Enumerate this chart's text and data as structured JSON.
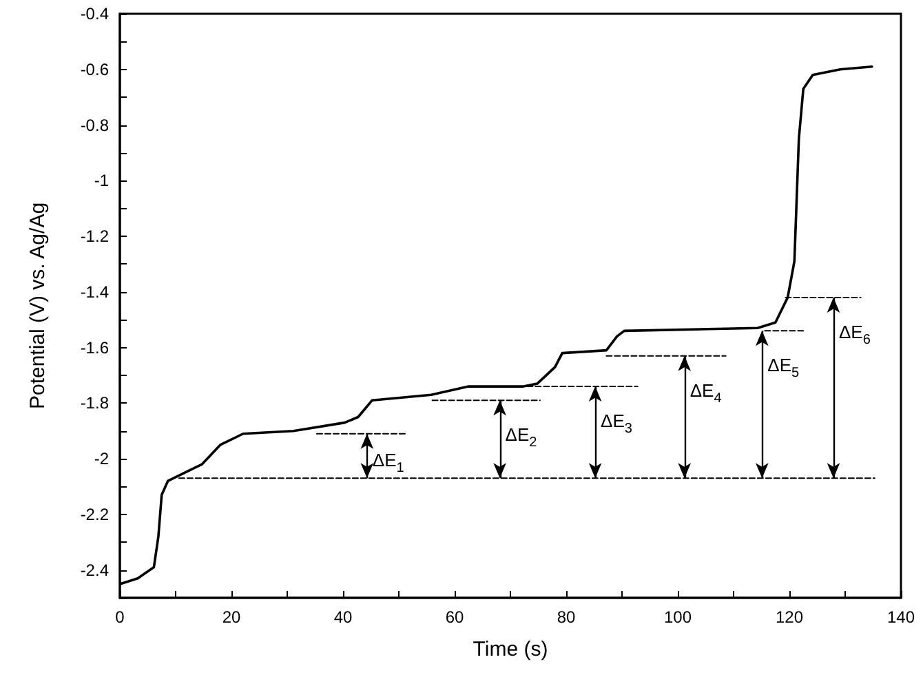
{
  "chart_data": {
    "type": "line",
    "xlabel": "Time (s)",
    "ylabel": "Potential (V) vs. Ag/Ag",
    "marker": "none",
    "xlim": [
      0,
      140
    ],
    "ylim": [
      -2.5,
      -0.4
    ],
    "xticks": [
      0,
      {
        "value": 10,
        "label": null
      },
      20,
      {
        "value": 30,
        "label": null
      },
      40,
      {
        "value": 50,
        "label": null
      },
      60,
      {
        "value": 70,
        "label": null
      },
      80,
      {
        "value": 90,
        "label": null
      },
      100,
      {
        "value": 110,
        "label": null
      },
      120,
      {
        "value": 130,
        "label": null
      },
      140
    ],
    "yticks": [
      {
        "value": -2.5,
        "label": null
      },
      -2.4,
      {
        "value": -2.3,
        "label": null
      },
      -2.2,
      {
        "value": -2.1,
        "label": null
      },
      -2.0,
      {
        "value": -1.9,
        "label": null
      },
      -1.8,
      {
        "value": -1.7,
        "label": null
      },
      -1.6,
      {
        "value": -1.5,
        "label": null
      },
      -1.4,
      {
        "value": -1.3,
        "label": null
      },
      -1.2,
      {
        "value": -1.1,
        "label": null
      },
      -1.0,
      {
        "value": -0.9,
        "label": null
      },
      -0.8,
      {
        "value": -0.7,
        "label": null
      },
      -0.6,
      {
        "value": -0.5,
        "label": null
      },
      -0.4
    ],
    "series": [
      {
        "color": "#000000",
        "line_style": "solid",
        "x": [
          0.1,
          3.2,
          6.1,
          6.9,
          7.5,
          8.6,
          10.6,
          14.7,
          18.0,
          22.1,
          31.1,
          40.3,
          42.7,
          45.2,
          55.8,
          62.5,
          72.3,
          74.8,
          78.0,
          79.3,
          87.2,
          89.1,
          90.4,
          114.3,
          117.5,
          119.7,
          120.9,
          121.7,
          122.5,
          124.2,
          129.1,
          134.8
        ],
        "values": [
          -2.45,
          -2.43,
          -2.39,
          -2.28,
          -2.13,
          -2.08,
          -2.06,
          -2.02,
          -1.95,
          -1.91,
          -1.9,
          -1.87,
          -1.85,
          -1.79,
          -1.77,
          -1.74,
          -1.74,
          -1.73,
          -1.67,
          -1.62,
          -1.61,
          -1.56,
          -1.54,
          -1.53,
          -1.51,
          -1.42,
          -1.29,
          -0.85,
          -0.67,
          -0.62,
          -0.6,
          -0.59
        ]
      },
      {
        "color": "#000000",
        "line_style": "dashed",
        "x": [
          10.6,
          135.3
        ],
        "values": [
          -2.07,
          -2.07
        ]
      },
      {
        "color": "#000000",
        "line_style": "dashed",
        "x": [
          35.3,
          51.4
        ],
        "values": [
          -1.91,
          -1.91
        ]
      },
      {
        "color": "#000000",
        "line_style": "dashed",
        "x": [
          56,
          75.3
        ],
        "values": [
          -1.79,
          -1.79
        ]
      },
      {
        "color": "#000000",
        "line_style": "dashed",
        "x": [
          73,
          92.8
        ],
        "values": [
          -1.74,
          -1.74
        ]
      },
      {
        "color": "#000000",
        "line_style": "dashed",
        "x": [
          87.2,
          108.6
        ],
        "values": [
          -1.63,
          -1.63
        ]
      },
      {
        "color": "#000000",
        "line_style": "dashed",
        "x": [
          115.6,
          122.5
        ],
        "values": [
          -1.54,
          -1.54
        ]
      },
      {
        "color": "#000000",
        "line_style": "dashed",
        "x": [
          119.3,
          132.8
        ],
        "values": [
          -1.42,
          -1.42
        ]
      }
    ],
    "annotations": [
      {
        "text": "ΔE$_{1}$",
        "x": 44.3,
        "y": -1.91
      },
      {
        "text": "ΔE$_{2}$",
        "x": 68.1,
        "y": -1.79
      },
      {
        "text": "ΔE$_{3}$",
        "x": 85.2,
        "y": -1.74
      },
      {
        "text": "ΔE$_{4}$",
        "x": 101.2,
        "y": -1.63
      },
      {
        "text": "ΔE$_{5}$",
        "x": 115.1,
        "y": -1.54
      },
      {
        "text": "ΔE$_{6}$",
        "x": 127.9,
        "y": -1.42
      }
    ]
  }
}
